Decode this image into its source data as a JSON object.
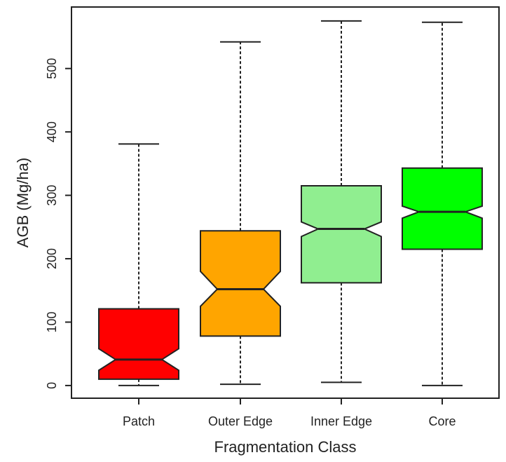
{
  "chart_data": {
    "type": "boxplot",
    "notched": true,
    "xlabel": "Fragmentation Class",
    "ylabel": "AGB (Mg/ha)",
    "ylim": [
      -20,
      597
    ],
    "yticks": [
      0,
      100,
      200,
      300,
      400,
      500
    ],
    "grid": false,
    "legend": "none",
    "categories": [
      "Patch",
      "Outer Edge",
      "Inner Edge",
      "Core"
    ],
    "boxes": [
      {
        "label": "Patch",
        "whisker_low": 0,
        "q1": 10,
        "median": 41,
        "q3": 121,
        "whisker_high": 381,
        "notch_low": 24,
        "notch_high": 58,
        "color": "#ff0000"
      },
      {
        "label": "Outer Edge",
        "whisker_low": 2,
        "q1": 78,
        "median": 152,
        "q3": 244,
        "whisker_high": 542,
        "notch_low": 125,
        "notch_high": 180,
        "color": "#ffa500"
      },
      {
        "label": "Inner Edge",
        "whisker_low": 5,
        "q1": 162,
        "median": 247,
        "q3": 315,
        "whisker_high": 575,
        "notch_low": 235,
        "notch_high": 258,
        "color": "#90ee90"
      },
      {
        "label": "Core",
        "whisker_low": 0,
        "q1": 215,
        "median": 274,
        "q3": 343,
        "whisker_high": 573,
        "notch_low": 264,
        "notch_high": 283,
        "color": "#00ff00"
      }
    ]
  }
}
